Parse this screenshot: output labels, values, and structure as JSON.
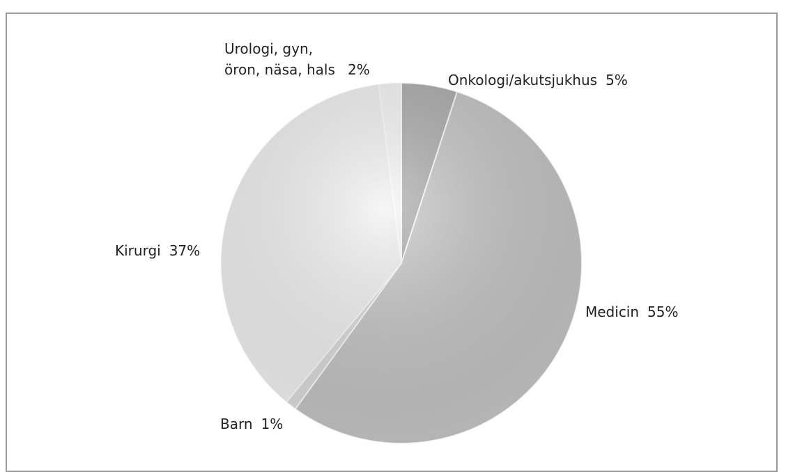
{
  "chart_data": {
    "type": "pie",
    "categories": [
      "Onkologi/akutsjukhus",
      "Medicin",
      "Barn",
      "Kirurgi",
      "Urologi, gyn, öron, näsa, hals"
    ],
    "values": [
      5,
      55,
      1,
      37,
      2
    ],
    "value_labels": [
      "5%",
      "55%",
      "1%",
      "37%",
      "2%"
    ],
    "colors": [
      "#a9a9a9",
      "#c4c4c4",
      "#dcdcdc",
      "#f1f1f1",
      "#f6f6f6"
    ]
  }
}
